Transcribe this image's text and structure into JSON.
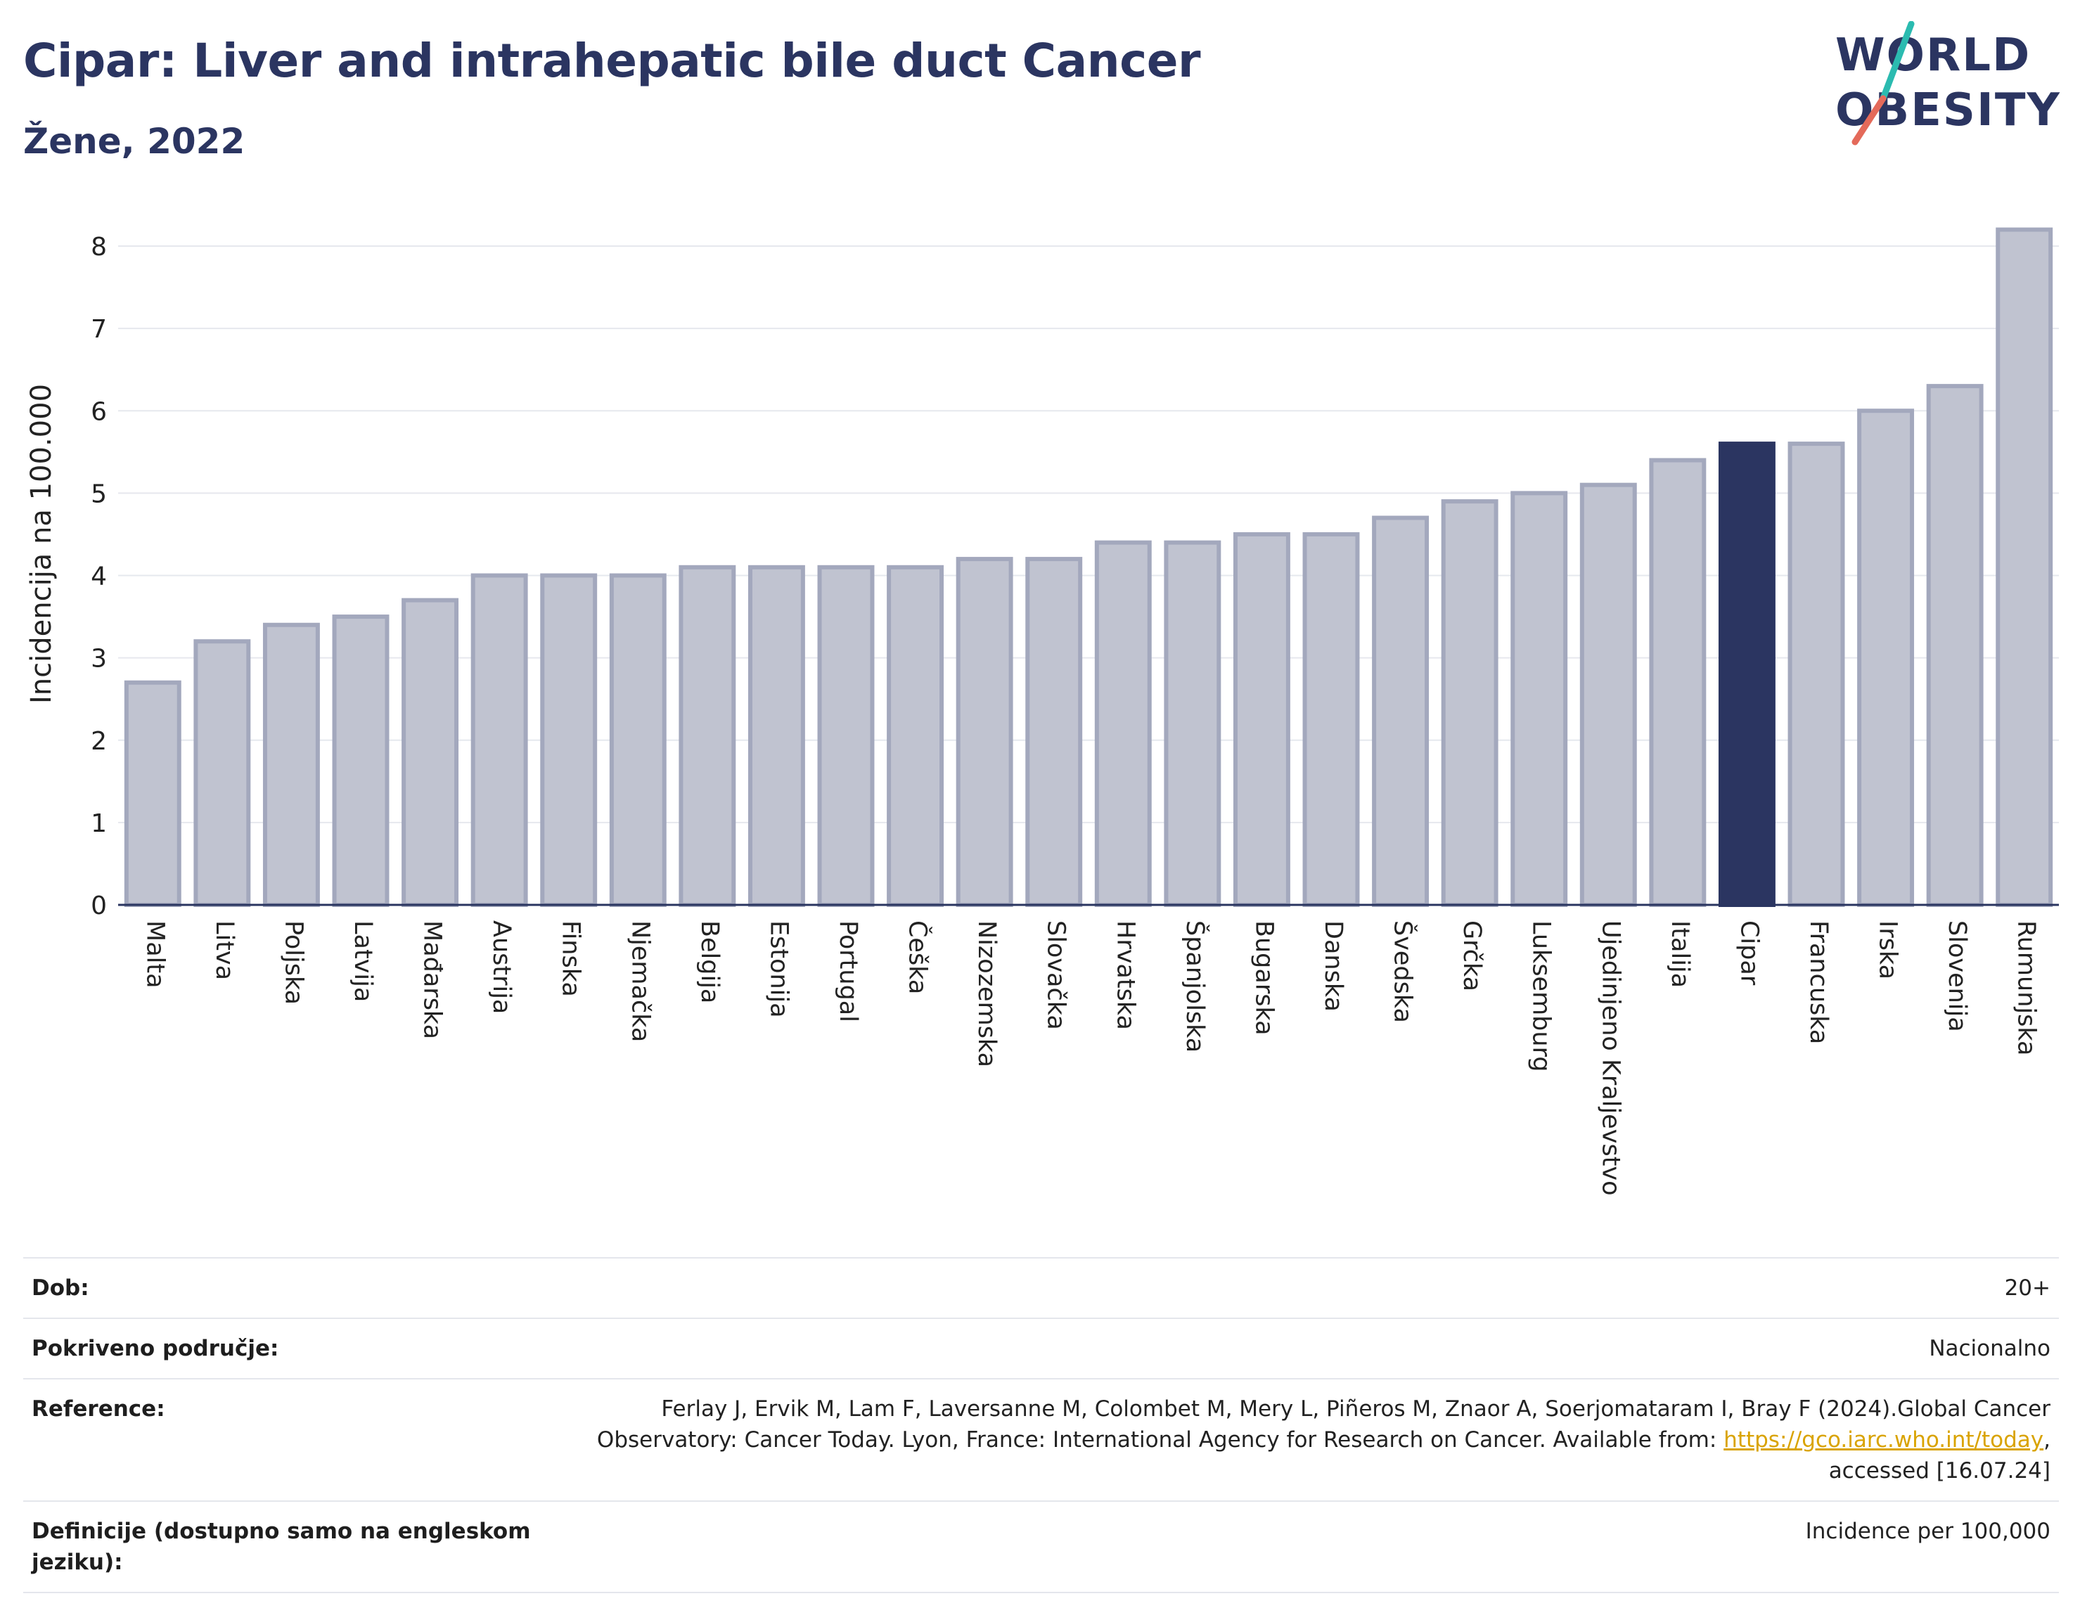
{
  "header": {
    "title": "Cipar: Liver and intrahepatic bile duct Cancer",
    "subtitle": "Žene, 2022"
  },
  "logo": {
    "line1": "WORLD",
    "line2": "OBESITY",
    "accent_teal": "#2bbbb0",
    "accent_coral": "#e46a5a"
  },
  "chart_data": {
    "type": "bar",
    "title": "Cipar: Liver and intrahepatic bile duct Cancer",
    "subtitle": "Žene, 2022",
    "ylabel": "Incidencija na 100.000",
    "xlabel": "",
    "ylim": [
      0,
      8.3
    ],
    "yticks": [
      0,
      1,
      2,
      3,
      4,
      5,
      6,
      7,
      8
    ],
    "grid": true,
    "highlight": "Cipar",
    "colors": {
      "bar": "#c0c3d0",
      "bar_border": "#a3a8bd",
      "highlight": "#2b3561",
      "grid": "#e6e8ee",
      "axis": "#2a3560"
    },
    "categories": [
      "Malta",
      "Litva",
      "Poljska",
      "Latvija",
      "Mađarska",
      "Austrija",
      "Finska",
      "Njemačka",
      "Belgija",
      "Estonija",
      "Portugal",
      "Češka",
      "Nizozemska",
      "Slovačka",
      "Hrvatska",
      "Španjolska",
      "Bugarska",
      "Danska",
      "Švedska",
      "Grčka",
      "Luksemburg",
      "Ujedinjeno Kraljevstvo",
      "Italija",
      "Cipar",
      "Francuska",
      "Irska",
      "Slovenija",
      "Rumunjska"
    ],
    "values": [
      2.7,
      3.2,
      3.4,
      3.5,
      3.7,
      4.0,
      4.0,
      4.0,
      4.1,
      4.1,
      4.1,
      4.1,
      4.2,
      4.2,
      4.4,
      4.4,
      4.5,
      4.5,
      4.7,
      4.9,
      5.0,
      5.1,
      5.4,
      5.6,
      5.6,
      6.0,
      6.3,
      8.2
    ]
  },
  "info": {
    "age_label": "Dob:",
    "age_value": "20+",
    "coverage_label": "Pokriveno područje:",
    "coverage_value": "Nacionalno",
    "reference_label": "Reference:",
    "reference_line1": "Ferlay J, Ervik M, Lam F, Laversanne M, Colombet M, Mery L, Piñeros M, Znaor A, Soerjomataram I, Bray F (2024).Global Cancer",
    "reference_line2": "Observatory: Cancer Today. Lyon, France: International Agency for Research on Cancer. Available from: ",
    "reference_link": "https://gco.iarc.who.int/today",
    "reference_line2_end": ",",
    "reference_line3": "accessed [16.07.24]",
    "definitions_label": "Definicije (dostupno samo na engleskom jeziku):",
    "definitions_value": "Incidence per 100,000"
  }
}
